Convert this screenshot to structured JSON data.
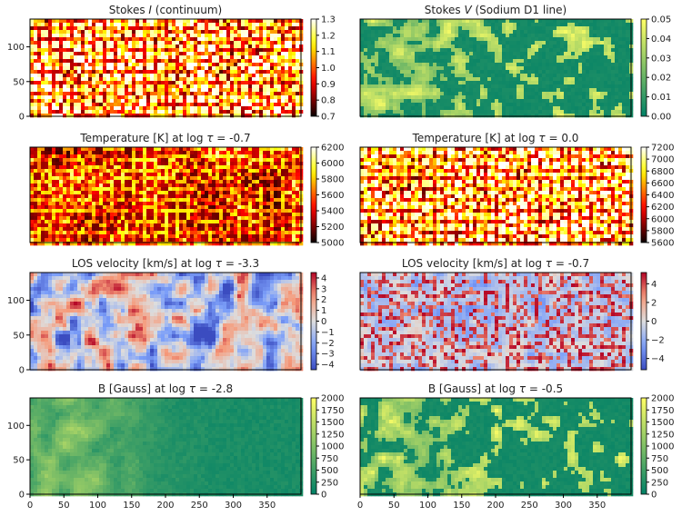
{
  "chart_data": [
    {
      "type": "heatmap",
      "title": "Stokes I (continuum)",
      "title_parts": [
        {
          "t": "Stokes "
        },
        {
          "t": "I",
          "italic": true
        },
        {
          "t": " (continuum)"
        }
      ],
      "colormap": "hot",
      "pattern": "granulation",
      "xlim": [
        0,
        400
      ],
      "ylim": [
        0,
        140
      ],
      "xticks": [],
      "yticks": [
        0,
        50,
        100
      ],
      "colorbar": {
        "min": 0.7,
        "max": 1.3,
        "ticks": [
          "0.7",
          "0.8",
          "0.9",
          "1.0",
          "1.1",
          "1.2",
          "1.3"
        ]
      }
    },
    {
      "type": "heatmap",
      "title": "Stokes V (Sodium D1 line)",
      "title_parts": [
        {
          "t": "Stokes "
        },
        {
          "t": "V",
          "italic": true
        },
        {
          "t": " (Sodium D1 line)"
        }
      ],
      "colormap": "summer",
      "pattern": "patches_sparse",
      "xlim": [
        0,
        400
      ],
      "ylim": [
        0,
        140
      ],
      "xticks": [],
      "yticks": [],
      "colorbar": {
        "min": 0.0,
        "max": 0.05,
        "ticks": [
          "0.00",
          "0.01",
          "0.02",
          "0.03",
          "0.04",
          "0.05"
        ]
      }
    },
    {
      "type": "heatmap",
      "title": "Temperature [K] at log τ = -0.7",
      "title_parts": [
        {
          "t": "Temperature [K] at log "
        },
        {
          "t": "τ",
          "italic": true
        },
        {
          "t": " = -0.7"
        }
      ],
      "colormap": "hot",
      "pattern": "reversed_granulation",
      "xlim": [
        0,
        400
      ],
      "ylim": [
        0,
        140
      ],
      "xticks": [],
      "yticks": [],
      "colorbar": {
        "min": 5000,
        "max": 6200,
        "ticks": [
          "5000",
          "5200",
          "5400",
          "5600",
          "5800",
          "6000",
          "6200"
        ]
      }
    },
    {
      "type": "heatmap",
      "title": "Temperature [K] at log τ = 0.0",
      "title_parts": [
        {
          "t": "Temperature [K] at log "
        },
        {
          "t": "τ",
          "italic": true
        },
        {
          "t": " = 0.0"
        }
      ],
      "colormap": "hot",
      "pattern": "granulation",
      "xlim": [
        0,
        400
      ],
      "ylim": [
        0,
        140
      ],
      "xticks": [],
      "yticks": [],
      "colorbar": {
        "min": 5600,
        "max": 7200,
        "ticks": [
          "5600",
          "5800",
          "6000",
          "6200",
          "6400",
          "6600",
          "6800",
          "7000",
          "7200"
        ]
      }
    },
    {
      "type": "heatmap",
      "title": "LOS velocity [km/s] at log τ = -3.3",
      "title_parts": [
        {
          "t": "LOS velocity [km/s] at log "
        },
        {
          "t": "τ",
          "italic": true
        },
        {
          "t": " = -3.3"
        }
      ],
      "colormap": "coolwarm",
      "pattern": "diverging_smooth",
      "xlim": [
        0,
        400
      ],
      "ylim": [
        0,
        140
      ],
      "xticks": [],
      "yticks": [
        0,
        50,
        100
      ],
      "colorbar": {
        "min": -4.5,
        "max": 4.5,
        "ticks": [
          "−4",
          "−3",
          "−2",
          "−1",
          "0",
          "1",
          "2",
          "3",
          "4"
        ],
        "tick_values": [
          -4,
          -3,
          -2,
          -1,
          0,
          1,
          2,
          3,
          4
        ]
      }
    },
    {
      "type": "heatmap",
      "title": "LOS velocity [km/s] at log τ = -0.7",
      "title_parts": [
        {
          "t": "LOS velocity [km/s] at log "
        },
        {
          "t": "τ",
          "italic": true
        },
        {
          "t": " = -0.7"
        }
      ],
      "colormap": "coolwarm",
      "pattern": "diverging_cells",
      "xlim": [
        0,
        400
      ],
      "ylim": [
        0,
        140
      ],
      "xticks": [],
      "yticks": [],
      "colorbar": {
        "min": -5.2,
        "max": 5.2,
        "ticks": [
          "−4",
          "−2",
          "0",
          "2",
          "4"
        ],
        "tick_values": [
          -4,
          -2,
          0,
          2,
          4
        ]
      }
    },
    {
      "type": "heatmap",
      "title": "B [Gauss] at log τ = -2.8",
      "title_parts": [
        {
          "t": "B [Gauss] at log "
        },
        {
          "t": "τ",
          "italic": true
        },
        {
          "t": " = -2.8"
        }
      ],
      "colormap": "summer",
      "pattern": "patches_broad",
      "xlim": [
        0,
        400
      ],
      "ylim": [
        0,
        140
      ],
      "xticks": [
        0,
        50,
        100,
        150,
        200,
        250,
        300,
        350
      ],
      "yticks": [
        0,
        50,
        100
      ],
      "colorbar": {
        "min": 0,
        "max": 2000,
        "ticks": [
          "0",
          "250",
          "500",
          "750",
          "1000",
          "1250",
          "1500",
          "1750",
          "2000"
        ]
      }
    },
    {
      "type": "heatmap",
      "title": "B [Gauss] at log τ = -0.5",
      "title_parts": [
        {
          "t": "B [Gauss] at log "
        },
        {
          "t": "τ",
          "italic": true
        },
        {
          "t": " = -0.5"
        }
      ],
      "colormap": "summer",
      "pattern": "patches_sparse",
      "xlim": [
        0,
        400
      ],
      "ylim": [
        0,
        140
      ],
      "xticks": [
        0,
        50,
        100,
        150,
        200,
        250,
        300,
        350
      ],
      "yticks": [],
      "colorbar": {
        "min": 0,
        "max": 2000,
        "ticks": [
          "0",
          "250",
          "500",
          "750",
          "1000",
          "1250",
          "1500",
          "1750",
          "2000"
        ]
      }
    }
  ]
}
